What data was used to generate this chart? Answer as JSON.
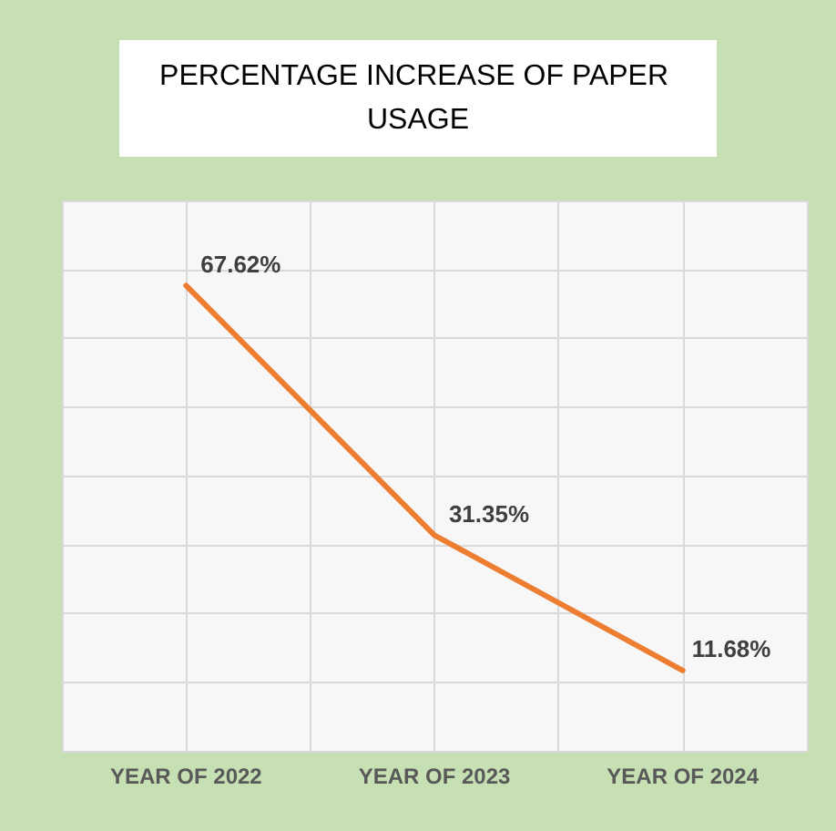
{
  "chart_data": {
    "type": "line",
    "title": "PERCENTAGE INCREASE OF PAPER USAGE",
    "categories": [
      "YEAR OF 2022",
      "YEAR OF 2023",
      "YEAR OF 2024"
    ],
    "series": [
      {
        "color": "#ed7d31",
        "values": [
          67.62,
          31.35,
          11.68
        ],
        "value_labels": [
          "67.62%",
          "31.35%",
          "11.68%"
        ]
      }
    ],
    "ylim": [
      0,
      80
    ],
    "yticks": [
      {
        "value": 0,
        "label": null
      },
      {
        "value": 10,
        "label": null
      },
      {
        "value": 20,
        "label": null
      },
      {
        "value": 30,
        "label": null
      },
      {
        "value": 40,
        "label": null
      },
      {
        "value": 50,
        "label": null
      },
      {
        "value": 60,
        "label": null
      },
      {
        "value": 70,
        "label": null
      },
      {
        "value": 80,
        "label": null
      }
    ],
    "tick_labels": "x",
    "grid": true,
    "marker": "none",
    "line_style": "solid"
  }
}
